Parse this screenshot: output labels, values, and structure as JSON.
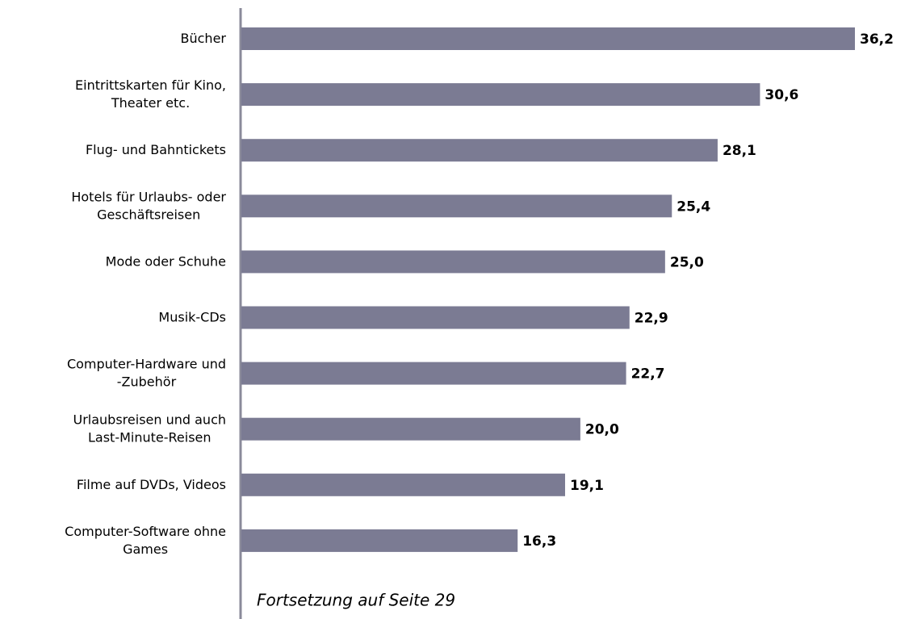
{
  "chart_data": {
    "type": "hbar",
    "categories": [
      "Bücher",
      "Eintrittskarten für Kino,\nTheater etc.",
      "Flug- und Bahntickets",
      "Hotels für Urlaubs- oder\nGeschäftsreisen",
      "Mode oder Schuhe",
      "Musik-CDs",
      "Computer-Hardware und\n-Zubehör",
      "Urlaubsreisen und auch\nLast-Minute-Reisen",
      "Filme auf DVDs, Videos",
      "Computer-Software ohne\nGames"
    ],
    "values": [
      36.2,
      30.6,
      28.1,
      25.4,
      25.0,
      22.9,
      22.7,
      20.0,
      19.1,
      16.3
    ],
    "value_labels": [
      "36,2",
      "30,6",
      "28,1",
      "25,4",
      "25,0",
      "22,9",
      "22,7",
      "20,0",
      "19,1",
      "16,3"
    ],
    "color": "#7b7b93",
    "annotation": "Fortsetzung auf Seite 29"
  }
}
